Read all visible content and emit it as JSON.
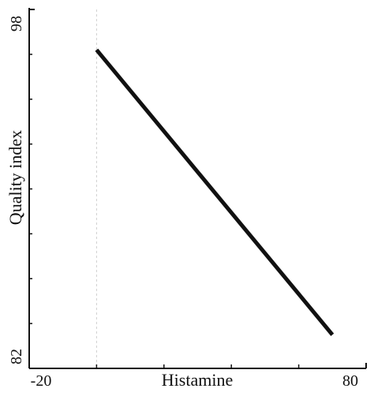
{
  "chart_data": {
    "type": "line",
    "title": "",
    "xlabel": "Histamine",
    "ylabel": "Quality index",
    "xlim": [
      -20,
      80
    ],
    "ylim": [
      82,
      98
    ],
    "x_tick_labels": [
      "-20",
      "80"
    ],
    "y_tick_labels": [
      "82",
      "98"
    ],
    "x_minor_ticks": [
      0,
      20,
      40,
      60
    ],
    "y_minor_ticks": [
      84,
      86,
      88,
      90,
      92,
      94,
      96
    ],
    "reference_line_x": 0,
    "grid": false,
    "series": [
      {
        "x": [
          0,
          70
        ],
        "y": [
          96.2,
          83.5
        ]
      }
    ],
    "line_color": "#111111",
    "ref_line_color": "#d0d0d0"
  }
}
